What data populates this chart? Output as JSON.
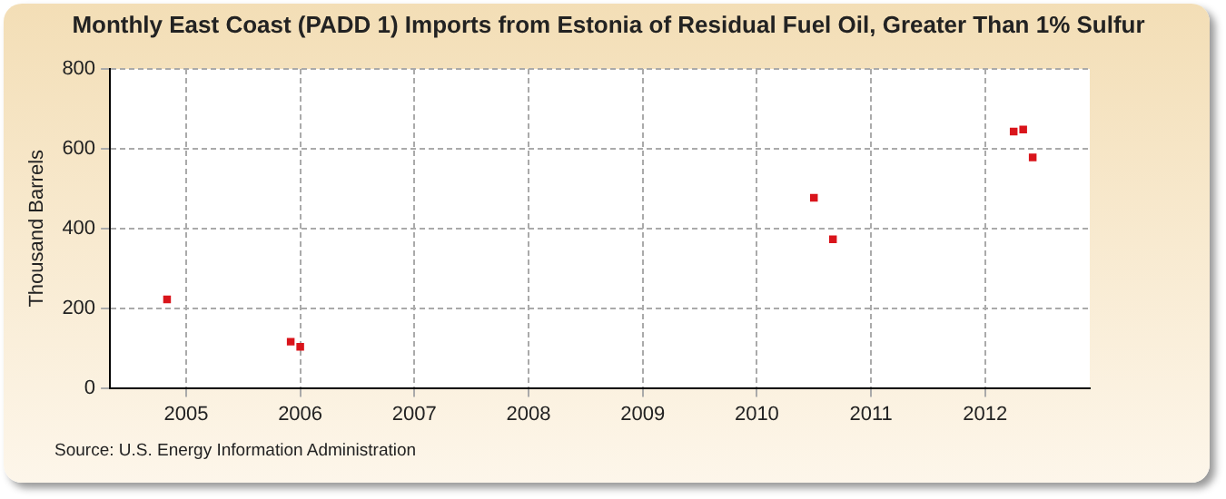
{
  "chart_data": {
    "type": "scatter",
    "title": "Monthly East Coast (PADD 1) Imports from Estonia of Residual Fuel Oil, Greater Than 1% Sulfur",
    "ylabel": "Thousand Barrels",
    "x": [
      "2004-11",
      "2005-12",
      "2006-01",
      "2010-07",
      "2010-09",
      "2012-04",
      "2012-05",
      "2012-06"
    ],
    "series": [
      {
        "color": "#d9141b",
        "values": [
          222,
          116,
          103,
          477,
          373,
          643,
          648,
          578
        ]
      }
    ],
    "xlim": [
      "2004-05",
      "2012-12"
    ],
    "xticks": [
      "2005",
      "2006",
      "2007",
      "2008",
      "2009",
      "2010",
      "2011",
      "2012"
    ],
    "ylim": [
      0,
      800
    ],
    "yticks": [
      0,
      200,
      400,
      600,
      800
    ],
    "grid": true,
    "marker": "square",
    "legend": false,
    "annotations": [
      "Source: U.S. Energy Information Administration"
    ]
  }
}
